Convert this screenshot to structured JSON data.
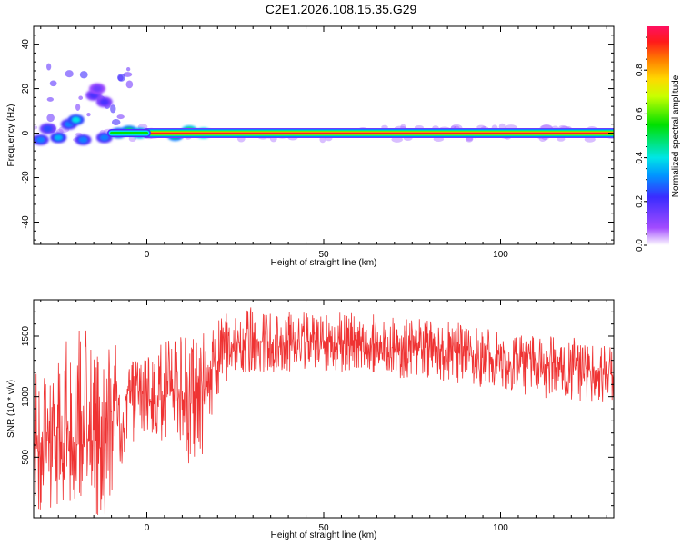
{
  "title": "C2E1.2026.108.15.35.G29",
  "chart_data": [
    {
      "type": "heatmap",
      "title": "C2E1.2026.108.15.35.G29",
      "xlabel": "Height of straight line (km)",
      "ylabel": "Frequency (Hz)",
      "xlim": [
        -32,
        132
      ],
      "ylim": [
        -50,
        48
      ],
      "xticks": [
        0,
        50,
        100
      ],
      "yticks": [
        40,
        20,
        0,
        -20,
        -40
      ],
      "colorbar": {
        "label": "Normalized spectral amplitude",
        "ticks": [
          "0.0",
          "0.2",
          "0.4",
          "0.6",
          "0.8"
        ],
        "range": [
          0,
          1
        ]
      },
      "main_band": {
        "frequency": 0,
        "x_start": 0,
        "x_end": 132,
        "amplitude": 0.9
      },
      "sparse_blobs": [
        {
          "x": -30,
          "f": -3,
          "a": 0.3
        },
        {
          "x": -28,
          "f": 2,
          "a": 0.25
        },
        {
          "x": -25,
          "f": -2,
          "a": 0.35
        },
        {
          "x": -22,
          "f": 4,
          "a": 0.3
        },
        {
          "x": -20,
          "f": 6,
          "a": 0.4
        },
        {
          "x": -18,
          "f": -3,
          "a": 0.3
        },
        {
          "x": -15,
          "f": 17,
          "a": 0.2
        },
        {
          "x": -14,
          "f": 20,
          "a": 0.15
        },
        {
          "x": -12,
          "f": 14,
          "a": 0.2
        },
        {
          "x": -12,
          "f": -2,
          "a": 0.3
        },
        {
          "x": -8,
          "f": 0,
          "a": 0.45
        },
        {
          "x": -5,
          "f": 1,
          "a": 0.5
        },
        {
          "x": -2,
          "f": 0,
          "a": 0.55
        },
        {
          "x": 8,
          "f": -1,
          "a": 0.5
        },
        {
          "x": 12,
          "f": 1,
          "a": 0.6
        },
        {
          "x": 16,
          "f": 0,
          "a": 0.65
        }
      ]
    },
    {
      "type": "line",
      "xlabel": "Height of straight line (km)",
      "ylabel": "SNR (10 * v/v)",
      "xlim": [
        -32,
        132
      ],
      "ylim": [
        0,
        1800
      ],
      "xticks": [
        0,
        50,
        100
      ],
      "yticks": [
        500,
        1000,
        1500
      ],
      "color": "#ef3333",
      "envelope": {
        "x": [
          -32,
          -25,
          -18,
          -12,
          -8,
          -4,
          0,
          5,
          10,
          14,
          18,
          22,
          26,
          30,
          40,
          50,
          60,
          70,
          80,
          90,
          100,
          110,
          120,
          132
        ],
        "low": [
          0,
          100,
          50,
          0,
          200,
          600,
          700,
          600,
          500,
          300,
          800,
          1100,
          1200,
          1200,
          1200,
          1200,
          1200,
          1150,
          1150,
          1100,
          1050,
          1000,
          950,
          950
        ],
        "high": [
          1400,
          1500,
          1600,
          1700,
          1400,
          1300,
          1350,
          1500,
          1600,
          1500,
          1550,
          1700,
          1750,
          1750,
          1700,
          1700,
          1700,
          1650,
          1650,
          1600,
          1550,
          1500,
          1500,
          1400
        ],
        "mean": [
          600,
          700,
          650,
          600,
          850,
          950,
          1000,
          1050,
          1000,
          900,
          1150,
          1400,
          1450,
          1450,
          1450,
          1450,
          1450,
          1400,
          1400,
          1350,
          1300,
          1250,
          1250,
          1200
        ]
      }
    }
  ]
}
